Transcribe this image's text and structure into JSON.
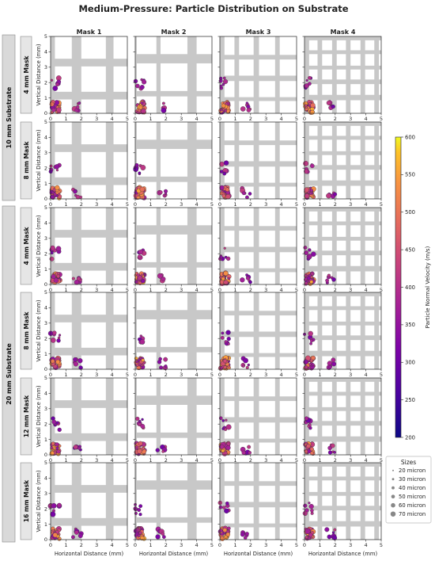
{
  "chart_data": {
    "type": "scatter",
    "title": "Medium-Pressure: Particle Distribution on Substrate",
    "columns": [
      "Mask 1",
      "Mask 2",
      "Mask 3",
      "Mask 4"
    ],
    "substrates": [
      {
        "label": "10 mm Substrate",
        "rows": [
          "4 mm Mask",
          "8 mm Mask"
        ]
      },
      {
        "label": "20 mm Substrate",
        "rows": [
          "4 mm Mask",
          "8 mm Mask",
          "12 mm Mask",
          "16 mm Mask"
        ]
      }
    ],
    "xlabel": "Horizontal Distance (mm)",
    "ylabel": "Vertical Distance (mm)",
    "xlim": [
      0,
      5
    ],
    "ylim": [
      0,
      5
    ],
    "xticks": [
      "0",
      "1",
      "2",
      "3",
      "4",
      "5"
    ],
    "yticks": [
      "0",
      "1",
      "2",
      "3",
      "4",
      "5"
    ],
    "colorbar": {
      "label": "Particle Normal Velocity (m/s)",
      "min": 200,
      "max": 600,
      "ticks": [
        "200",
        "250",
        "300",
        "350",
        "400",
        "450",
        "500",
        "550",
        "600"
      ],
      "colormap": "plasma"
    },
    "sizes_legend": {
      "title": "Sizes",
      "entries": [
        "20 micron",
        "30 micron",
        "40 micron",
        "50 micron",
        "60 micron",
        "70 micron"
      ]
    },
    "mask_colors": {
      "bar": "#c8c8c8",
      "open": "#ffffff"
    },
    "mask_geometry": [
      {
        "bars_x": [
          [
            0.0,
            0.28
          ],
          [
            1.38,
            2.0
          ],
          [
            3.6,
            4.1
          ]
        ],
        "bars_y": [
          [
            0.9,
            1.4
          ],
          [
            3.05,
            3.55
          ]
        ]
      },
      {
        "bars_x": [
          [
            0.0,
            0.1
          ],
          [
            1.38,
            1.65
          ],
          [
            3.4,
            4.0
          ]
        ],
        "bars_y": [
          [
            1.1,
            1.45
          ],
          [
            3.25,
            3.85
          ]
        ]
      },
      {
        "bars_x": [
          [
            0.0,
            0.3
          ],
          [
            0.95,
            1.25
          ],
          [
            2.2,
            2.55
          ],
          [
            3.6,
            3.9
          ]
        ],
        "bars_y": [
          [
            0.8,
            1.05
          ],
          [
            2.1,
            2.45
          ],
          [
            3.5,
            3.8
          ]
        ]
      },
      {
        "bars_x": [
          [
            0.0,
            0.3
          ],
          [
            0.85,
            1.15
          ],
          [
            1.8,
            2.1
          ],
          [
            2.7,
            3.0
          ],
          [
            3.65,
            3.95
          ],
          [
            4.55,
            4.85
          ]
        ],
        "bars_y": [
          [
            0.85,
            1.2
          ],
          [
            1.9,
            2.2
          ],
          [
            2.85,
            3.1
          ],
          [
            3.85,
            4.1
          ],
          [
            4.75,
            5.0
          ]
        ]
      }
    ],
    "clusters": [
      {
        "x": [
          0.05,
          0.6
        ],
        "y": [
          0.05,
          0.75
        ],
        "v": [
          340,
          560
        ]
      },
      {
        "x": [
          0.0,
          0.6
        ],
        "y": [
          1.6,
          2.4
        ],
        "v": [
          300,
          420
        ]
      },
      {
        "x": [
          1.45,
          2.0
        ],
        "y": [
          0.1,
          0.7
        ],
        "v": [
          300,
          420
        ]
      }
    ]
  }
}
